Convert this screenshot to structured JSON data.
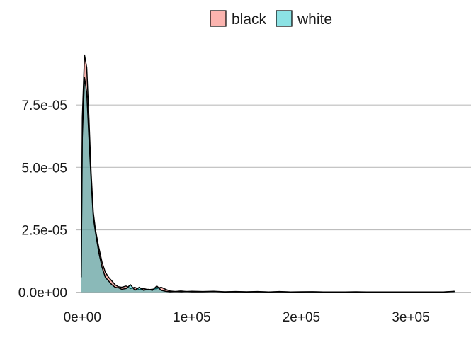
{
  "chart_data": {
    "type": "area",
    "title": "",
    "xlabel": "",
    "ylabel": "",
    "xlim": [
      -6000,
      355000
    ],
    "ylim": [
      -3.5e-06,
      0.0001
    ],
    "x_ticks": [
      {
        "value": 0,
        "label": "0e+00"
      },
      {
        "value": 100000,
        "label": "1e+05"
      },
      {
        "value": 200000,
        "label": "2e+05"
      },
      {
        "value": 300000,
        "label": "3e+05"
      }
    ],
    "y_ticks": [
      {
        "value": 0,
        "label": "0.0e+00"
      },
      {
        "value": 2.5e-05,
        "label": "2.5e-05"
      },
      {
        "value": 5e-05,
        "label": "5.0e-05"
      },
      {
        "value": 7.5e-05,
        "label": "7.5e-05"
      }
    ],
    "grid": "horizontal-major",
    "legend_position": "top",
    "series": [
      {
        "name": "black",
        "color": "#F8766D",
        "opacity": 0.55,
        "points": [
          [
            -1000,
            7e-06
          ],
          [
            0,
            7e-05
          ],
          [
            2000,
            9.5e-05
          ],
          [
            4000,
            9e-05
          ],
          [
            6000,
            7e-05
          ],
          [
            8000,
            4.8e-05
          ],
          [
            10000,
            3.2e-05
          ],
          [
            12000,
            2.5e-05
          ],
          [
            15000,
            1.8e-05
          ],
          [
            18000,
            1.2e-05
          ],
          [
            21000,
            8e-06
          ],
          [
            24000,
            6e-06
          ],
          [
            27000,
            4.5e-06
          ],
          [
            30000,
            3e-06
          ],
          [
            33000,
            2.2e-06
          ],
          [
            36000,
            2e-06
          ],
          [
            40000,
            2.5e-06
          ],
          [
            44000,
            1.5e-06
          ],
          [
            48000,
            2e-06
          ],
          [
            52000,
            1e-06
          ],
          [
            56000,
            1.5e-06
          ],
          [
            60000,
            1e-06
          ],
          [
            64000,
            1.2e-06
          ],
          [
            68000,
            1.5e-06
          ],
          [
            72000,
            2e-06
          ],
          [
            76000,
            1.2e-06
          ],
          [
            80000,
            5e-07
          ],
          [
            85000,
            3e-07
          ],
          [
            90000,
            5e-07
          ],
          [
            95000,
            3e-07
          ],
          [
            100000,
            4e-07
          ],
          [
            110000,
            3e-07
          ],
          [
            120000,
            4e-07
          ],
          [
            130000,
            2e-07
          ],
          [
            140000,
            3e-07
          ],
          [
            150000,
            2e-07
          ],
          [
            160000,
            3e-07
          ],
          [
            170000,
            1e-07
          ],
          [
            180000,
            3e-07
          ],
          [
            190000,
            1e-07
          ],
          [
            200000,
            2e-07
          ],
          [
            210000,
            2e-07
          ],
          [
            220000,
            1e-07
          ],
          [
            230000,
            1e-07
          ],
          [
            240000,
            1e-07
          ],
          [
            250000,
            2e-07
          ],
          [
            260000,
            1e-07
          ],
          [
            270000,
            1e-07
          ],
          [
            280000,
            1e-07
          ],
          [
            290000,
            1e-07
          ],
          [
            300000,
            1e-07
          ],
          [
            310000,
            1e-07
          ],
          [
            320000,
            1e-07
          ],
          [
            330000,
            1e-07
          ],
          [
            340000,
            4e-07
          ]
        ]
      },
      {
        "name": "white",
        "color": "#00BFC4",
        "opacity": 0.45,
        "points": [
          [
            -1000,
            6e-06
          ],
          [
            0,
            6.2e-05
          ],
          [
            2000,
            8.6e-05
          ],
          [
            4000,
            8e-05
          ],
          [
            6000,
            6.2e-05
          ],
          [
            8000,
            4.5e-05
          ],
          [
            10000,
            3e-05
          ],
          [
            12000,
            2.4e-05
          ],
          [
            15000,
            1.6e-05
          ],
          [
            18000,
            1e-05
          ],
          [
            21000,
            6e-06
          ],
          [
            24000,
            4.5e-06
          ],
          [
            27000,
            3e-06
          ],
          [
            30000,
            2e-06
          ],
          [
            33000,
            1.8e-06
          ],
          [
            36000,
            1.2e-06
          ],
          [
            40000,
            1.5e-06
          ],
          [
            44000,
            3e-06
          ],
          [
            48000,
            8e-07
          ],
          [
            52000,
            2e-06
          ],
          [
            56000,
            8e-07
          ],
          [
            60000,
            1.2e-06
          ],
          [
            64000,
            8e-07
          ],
          [
            68000,
            2.5e-06
          ],
          [
            72000,
            8e-07
          ],
          [
            76000,
            4e-07
          ],
          [
            80000,
            2e-07
          ],
          [
            85000,
            3e-07
          ],
          [
            90000,
            2e-07
          ],
          [
            95000,
            3e-07
          ],
          [
            100000,
            2e-07
          ],
          [
            110000,
            2e-07
          ],
          [
            120000,
            3e-07
          ],
          [
            130000,
            1e-07
          ],
          [
            140000,
            2e-07
          ],
          [
            150000,
            1e-07
          ],
          [
            160000,
            2e-07
          ],
          [
            170000,
            1e-07
          ],
          [
            180000,
            2e-07
          ],
          [
            190000,
            1e-07
          ],
          [
            200000,
            1e-07
          ],
          [
            210000,
            2e-07
          ],
          [
            220000,
            1e-07
          ],
          [
            230000,
            1e-07
          ],
          [
            240000,
            1e-07
          ],
          [
            250000,
            1e-07
          ],
          [
            260000,
            1e-07
          ],
          [
            270000,
            1e-07
          ],
          [
            280000,
            1e-07
          ],
          [
            290000,
            1e-07
          ],
          [
            300000,
            1e-07
          ],
          [
            310000,
            1e-07
          ],
          [
            320000,
            1e-07
          ],
          [
            330000,
            1e-07
          ],
          [
            340000,
            3e-07
          ]
        ]
      }
    ]
  }
}
